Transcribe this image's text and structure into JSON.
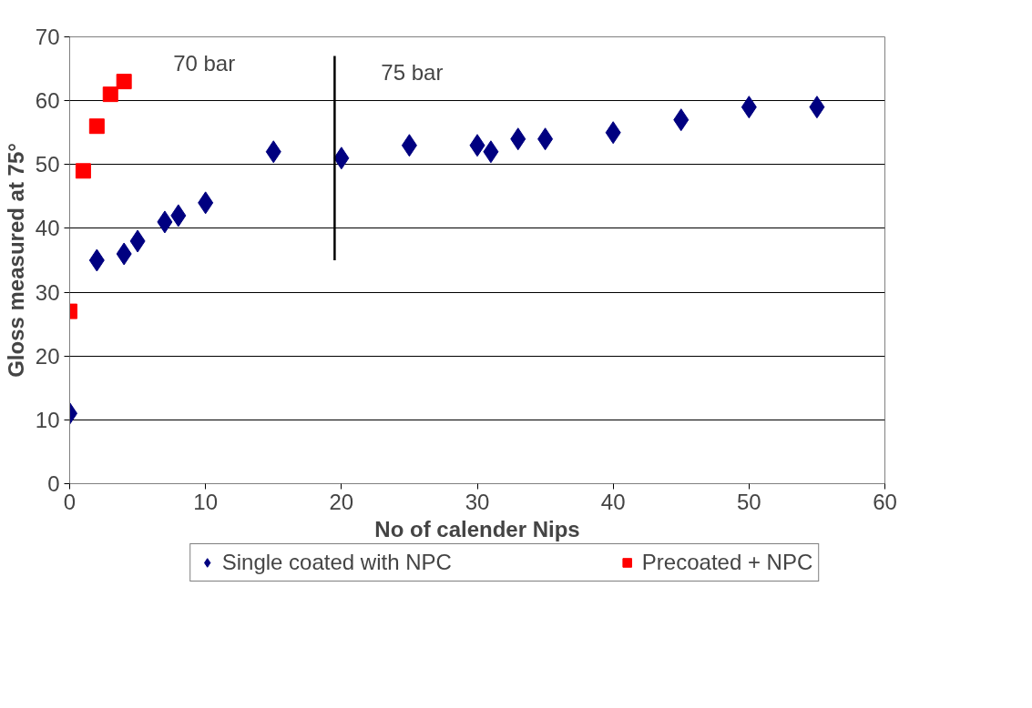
{
  "chart_data": {
    "type": "scatter",
    "xlabel": "No of calender Nips",
    "ylabel": "Gloss measured at 75°",
    "xlim": [
      0,
      60
    ],
    "xticks": [
      0,
      10,
      20,
      30,
      40,
      50,
      60
    ],
    "ylim": [
      0,
      70
    ],
    "yticks": [
      0,
      10,
      20,
      30,
      40,
      50,
      60,
      70
    ],
    "grid": "y",
    "legend": "bottom",
    "series": [
      {
        "name": "Single coated with NPC",
        "color": "#000080",
        "marker": "diamond",
        "x": [
          0,
          2,
          4,
          5,
          7,
          8,
          10,
          15,
          20,
          25,
          30,
          31,
          33,
          35,
          40,
          45,
          50,
          55
        ],
        "values": [
          11,
          35,
          36,
          38,
          41,
          42,
          44,
          52,
          51,
          53,
          53,
          52,
          54,
          54,
          55,
          57,
          59,
          59
        ]
      },
      {
        "name": "Precoated + NPC",
        "color": "#ff0000",
        "marker": "square",
        "x": [
          0,
          1,
          2,
          3,
          4
        ],
        "values": [
          27,
          49,
          56,
          61,
          63
        ]
      },
      {
        "type": "line",
        "color": "#000000",
        "x": [
          19.5,
          19.5
        ],
        "values": [
          35,
          67
        ]
      }
    ],
    "annotations": [
      "70 bar",
      "75 bar"
    ]
  }
}
